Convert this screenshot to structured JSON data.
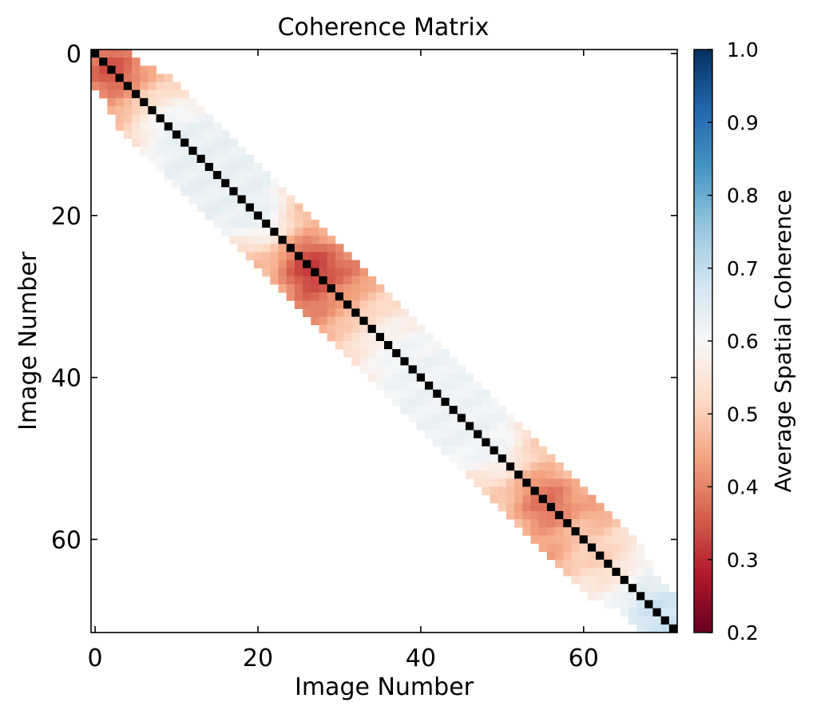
{
  "chart_data": {
    "type": "heatmap",
    "title": "Coherence Matrix",
    "xlabel": "Image Number",
    "ylabel": "Image Number",
    "n": 72,
    "xlim": [
      -0.5,
      71.5
    ],
    "ylim": [
      71.5,
      -0.5
    ],
    "x_ticks": [
      0,
      20,
      40,
      60
    ],
    "y_ticks": [
      0,
      20,
      40,
      60
    ],
    "diagonal_color": "#000000",
    "band_halfwidth_by_row": [
      4,
      4,
      5,
      6,
      6,
      6,
      6,
      6,
      6,
      6,
      6,
      6,
      6,
      6,
      6,
      6,
      6,
      6,
      6,
      6,
      6,
      6,
      6,
      6,
      6,
      6,
      6,
      6,
      6,
      6,
      6,
      6,
      6,
      6,
      6,
      6,
      6,
      6,
      6,
      6,
      6,
      6,
      6,
      6,
      6,
      6,
      6,
      6,
      6,
      6,
      6,
      6,
      6,
      6,
      6,
      6,
      6,
      6,
      6,
      6,
      6,
      6,
      6,
      6,
      6,
      6,
      6,
      6,
      5,
      4,
      4,
      4
    ],
    "approx_coherence_by_index": [
      0.4,
      0.36,
      0.34,
      0.36,
      0.4,
      0.46,
      0.52,
      0.56,
      0.6,
      0.62,
      0.63,
      0.63,
      0.63,
      0.63,
      0.63,
      0.63,
      0.63,
      0.63,
      0.63,
      0.63,
      0.63,
      0.62,
      0.58,
      0.5,
      0.42,
      0.36,
      0.32,
      0.32,
      0.34,
      0.38,
      0.42,
      0.45,
      0.48,
      0.52,
      0.55,
      0.58,
      0.6,
      0.61,
      0.62,
      0.62,
      0.62,
      0.62,
      0.62,
      0.62,
      0.62,
      0.62,
      0.62,
      0.62,
      0.62,
      0.61,
      0.6,
      0.56,
      0.5,
      0.44,
      0.4,
      0.38,
      0.38,
      0.4,
      0.44,
      0.48,
      0.5,
      0.5,
      0.5,
      0.52,
      0.55,
      0.58,
      0.62,
      0.66,
      0.68,
      0.68,
      0.68,
      0.68
    ],
    "colorbar": {
      "label": "Average Spatial Coherence",
      "min": 0.2,
      "max": 1.0,
      "ticks": [
        0.2,
        0.3,
        0.4,
        0.5,
        0.6,
        0.7,
        0.8,
        0.9,
        1.0
      ],
      "tick_labels": [
        "0.2",
        "0.3",
        "0.4",
        "0.5",
        "0.6",
        "0.7",
        "0.8",
        "0.9",
        "1.0"
      ],
      "colormap": "RdBu",
      "colormap_stops": [
        "#67001f",
        "#b2182b",
        "#d6604d",
        "#f4a582",
        "#fddbc7",
        "#f7f7f7",
        "#d1e5f0",
        "#92c5de",
        "#4393c3",
        "#2166ac",
        "#053061"
      ]
    }
  }
}
